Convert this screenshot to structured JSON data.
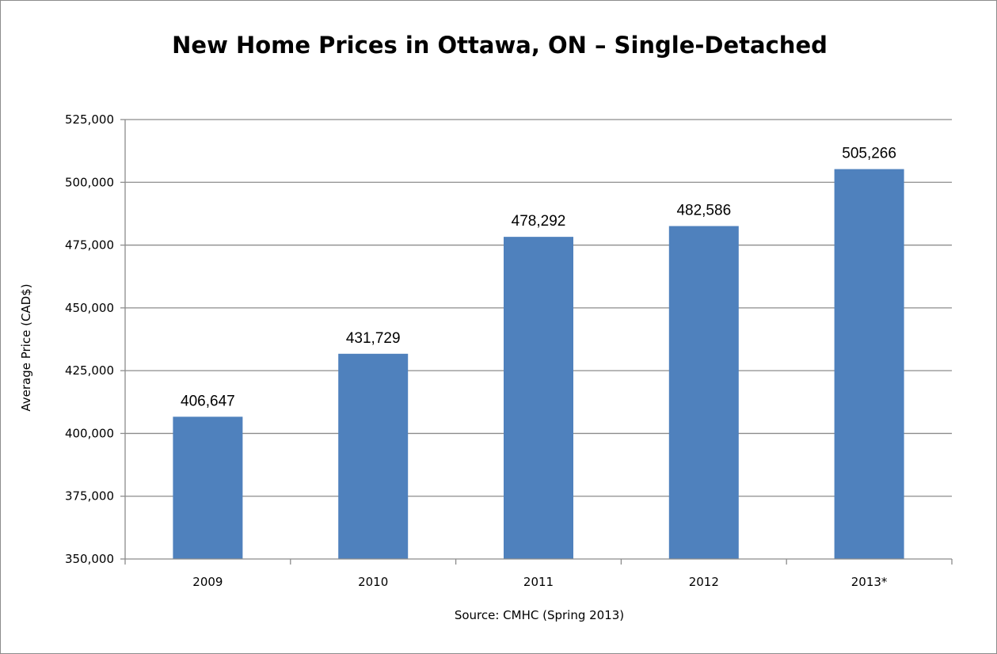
{
  "chart_data": {
    "type": "bar",
    "title": "New Home Prices in Ottawa, ON – Single-Detached",
    "xlabel": "Source: CMHC (Spring 2013)",
    "ylabel": "Average Price (CAD$)",
    "categories": [
      "2009",
      "2010",
      "2011",
      "2012",
      "2013*"
    ],
    "values": [
      406647,
      431729,
      478292,
      482586,
      505266
    ],
    "data_labels": [
      "406,647",
      "431,729",
      "478,292",
      "482,586",
      "505,266"
    ],
    "ylim": [
      350000,
      525000
    ],
    "yticks": [
      350000,
      375000,
      400000,
      425000,
      450000,
      475000,
      500000,
      525000
    ],
    "ytick_labels": [
      "350,000",
      "375,000",
      "400,000",
      "425,000",
      "450,000",
      "475,000",
      "500,000",
      "525,000"
    ],
    "grid": true,
    "legend": "none",
    "colors": {
      "bar": "#4f81bd",
      "grid": "#8c8c8c",
      "axis": "#8c8c8c"
    }
  }
}
